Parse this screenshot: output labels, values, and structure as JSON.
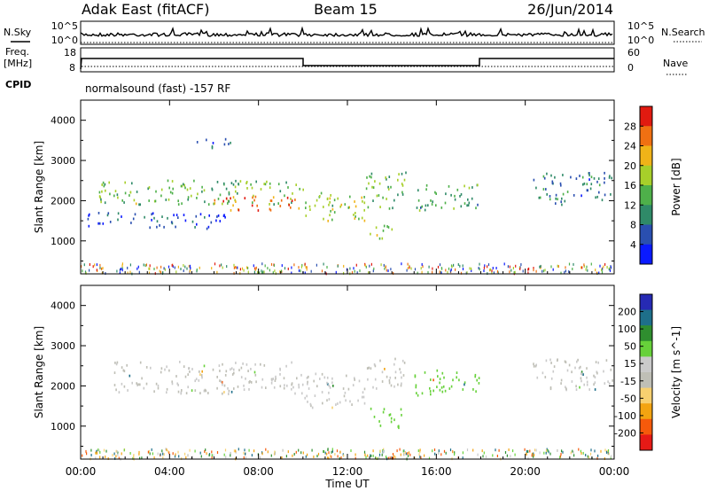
{
  "header": {
    "site": "Adak East (fitACF)",
    "beam": "Beam 15",
    "date": "26/Jun/2014"
  },
  "noise_panel": {
    "left_label": "N.Sky",
    "right_label": "N.Search",
    "tick_top": "10^5",
    "tick_bottom": "10^0"
  },
  "freq_panel": {
    "left_label_1": "Freq.",
    "left_label_2": "[MHz]",
    "left_tick_top": "18",
    "left_tick_bottom": "8",
    "right_label": "Nave",
    "right_tick_top": "60",
    "right_tick_bottom": "0"
  },
  "cpid_panel": {
    "label": "CPID",
    "text": "normalsound (fast) -157 RF"
  },
  "colors": {
    "power_scale": [
      "#0a1aff",
      "#2a4fb0",
      "#2f8a68",
      "#4eb04a",
      "#a7cf2a",
      "#f0b318",
      "#f07012",
      "#e11a10"
    ],
    "velocity_scale": [
      "#e61a16",
      "#f55a0b",
      "#f3a411",
      "#f7d070",
      "#bfbfb6",
      "#cacaca",
      "#67d13a",
      "#2f8e2f",
      "#1e6f8a",
      "#262ab4"
    ]
  },
  "chart_data": [
    {
      "type": "heatmap",
      "parameter": "Power",
      "ylabel": "Slant Range [km]",
      "ylim": [
        180,
        4500
      ],
      "xlim": [
        "00:00",
        "24:00"
      ],
      "x_ticks": [
        "00:00",
        "04:00",
        "08:00",
        "12:00",
        "16:00",
        "20:00",
        "00:00"
      ],
      "y_ticks": [
        "1000",
        "2000",
        "3000",
        "4000"
      ],
      "colorbar": {
        "label": "Power [dB]",
        "ticks": [
          "4",
          "8",
          "12",
          "16",
          "20",
          "24",
          "28"
        ],
        "range": [
          0,
          30
        ]
      },
      "regions": [
        {
          "t0": 0.8,
          "t1": 10.0,
          "r0": 1900,
          "r1": 2500,
          "value": 14
        },
        {
          "t0": 6.0,
          "t1": 10.0,
          "r0": 1750,
          "r1": 2100,
          "value": 24
        },
        {
          "t0": 10.0,
          "t1": 12.8,
          "r0": 1450,
          "r1": 2200,
          "value": 16
        },
        {
          "t0": 12.8,
          "t1": 14.6,
          "r0": 1800,
          "r1": 2700,
          "value": 14
        },
        {
          "t0": 13.0,
          "t1": 14.3,
          "r0": 1050,
          "r1": 1400,
          "value": 16
        },
        {
          "t0": 15.0,
          "t1": 17.9,
          "r0": 1750,
          "r1": 2400,
          "value": 12
        },
        {
          "t0": 20.3,
          "t1": 23.9,
          "r0": 1900,
          "r1": 2700,
          "value": 8
        },
        {
          "t0": 0.3,
          "t1": 6.5,
          "r0": 1300,
          "r1": 1700,
          "value": 5
        },
        {
          "t0": 5.2,
          "t1": 6.8,
          "r0": 3300,
          "r1": 3550,
          "value": 6
        }
      ]
    },
    {
      "type": "heatmap",
      "parameter": "Velocity",
      "ylabel": "Slant Range [km]",
      "ylim": [
        180,
        4500
      ],
      "xlim": [
        "00:00",
        "24:00"
      ],
      "x_ticks": [
        "00:00",
        "04:00",
        "08:00",
        "12:00",
        "16:00",
        "20:00",
        "00:00"
      ],
      "y_ticks": [
        "1000",
        "2000",
        "3000",
        "4000"
      ],
      "xlabel": "Time UT",
      "colorbar": {
        "label": "Velocity [m s^-1]",
        "ticks": [
          "200",
          "100",
          "50",
          "15",
          "-15",
          "-50",
          "-100",
          "-200"
        ],
        "range": [
          -250,
          250
        ]
      },
      "regions": [
        {
          "t0": 1.5,
          "t1": 10.0,
          "r0": 1800,
          "r1": 2600,
          "value": 0
        },
        {
          "t0": 10.0,
          "t1": 12.8,
          "r0": 1450,
          "r1": 2300,
          "value": 0
        },
        {
          "t0": 12.8,
          "t1": 14.6,
          "r0": 1900,
          "r1": 2700,
          "value": 0
        },
        {
          "t0": 13.0,
          "t1": 14.4,
          "r0": 950,
          "r1": 1450,
          "value": 35
        },
        {
          "t0": 15.0,
          "t1": 17.9,
          "r0": 1750,
          "r1": 2400,
          "value": 25
        },
        {
          "t0": 20.3,
          "t1": 23.9,
          "r0": 1900,
          "r1": 2700,
          "value": 0
        }
      ]
    }
  ]
}
